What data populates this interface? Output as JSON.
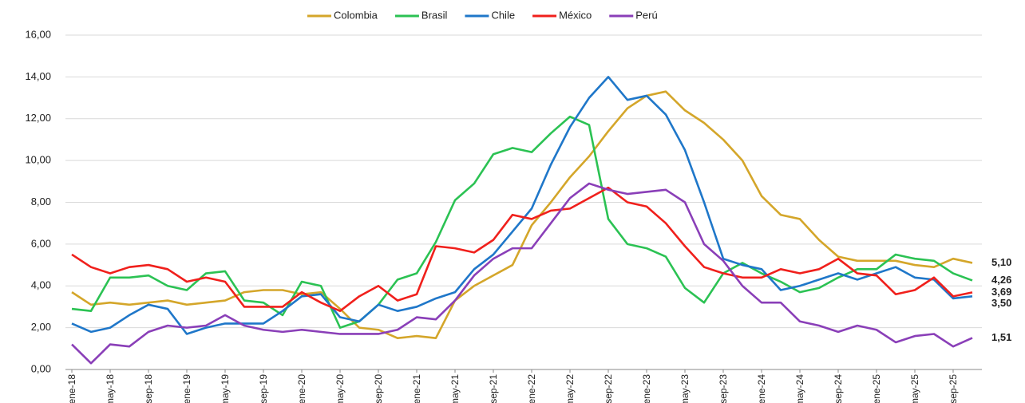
{
  "chart_data": {
    "type": "line",
    "categories": [
      "ene-18",
      null,
      "may-18",
      null,
      "sep-18",
      null,
      "ene-19",
      null,
      "may-19",
      null,
      "sep-19",
      null,
      "ene-20",
      null,
      "may-20",
      null,
      "sep-20",
      null,
      "ene-21",
      null,
      "may-21",
      null,
      "sep-21",
      null,
      "ene-22",
      null,
      "may-22",
      null,
      "sep-22",
      null,
      "ene-23",
      null,
      "may-23",
      null,
      "sep-23",
      null,
      "ene-24",
      null,
      "may-24",
      null,
      "sep-24",
      null,
      "ene-25",
      null,
      "may-25",
      null,
      "sep-25",
      null
    ],
    "series": [
      {
        "name": "Colombia",
        "color": "#d4a62a",
        "values": [
          3.7,
          3.1,
          3.2,
          3.1,
          3.2,
          3.3,
          3.1,
          3.2,
          3.3,
          3.7,
          3.8,
          3.8,
          3.6,
          3.7,
          2.9,
          2.0,
          1.9,
          1.5,
          1.6,
          1.5,
          3.3,
          4.0,
          4.5,
          5.0,
          6.9,
          8.0,
          9.2,
          10.2,
          11.4,
          12.5,
          13.1,
          13.3,
          12.4,
          11.8,
          11.0,
          10.0,
          8.3,
          7.4,
          7.2,
          6.2,
          5.4,
          5.2,
          5.2,
          5.2,
          5.0,
          4.9,
          5.3,
          5.1
        ],
        "value_labels": [
          null,
          null,
          null,
          null,
          null,
          null,
          null,
          null,
          null,
          null,
          null,
          null,
          null,
          null,
          null,
          null,
          null,
          null,
          null,
          null,
          null,
          null,
          null,
          null,
          null,
          null,
          null,
          null,
          null,
          null,
          null,
          null,
          null,
          null,
          null,
          null,
          null,
          null,
          null,
          null,
          null,
          null,
          null,
          null,
          null,
          null,
          null,
          "5,10"
        ]
      },
      {
        "name": "Brasil",
        "color": "#2bc253",
        "values": [
          2.9,
          2.8,
          4.4,
          4.4,
          4.5,
          4.0,
          3.8,
          4.6,
          4.7,
          3.3,
          3.2,
          2.6,
          4.2,
          4.0,
          2.0,
          2.3,
          3.1,
          4.3,
          4.6,
          6.1,
          8.1,
          8.9,
          10.3,
          10.6,
          10.4,
          11.3,
          12.1,
          11.7,
          7.2,
          6.0,
          5.8,
          5.4,
          3.9,
          3.2,
          4.6,
          5.1,
          4.6,
          4.2,
          3.7,
          3.9,
          4.4,
          4.8,
          4.8,
          5.5,
          5.3,
          5.2,
          4.6,
          4.26
        ],
        "value_labels": [
          null,
          null,
          null,
          null,
          null,
          null,
          null,
          null,
          null,
          null,
          null,
          null,
          null,
          null,
          null,
          null,
          null,
          null,
          null,
          null,
          null,
          null,
          null,
          null,
          null,
          null,
          null,
          null,
          null,
          null,
          null,
          null,
          null,
          null,
          null,
          null,
          null,
          null,
          null,
          null,
          null,
          null,
          null,
          null,
          null,
          null,
          null,
          "4,26"
        ]
      },
      {
        "name": "Chile",
        "color": "#1f77c9",
        "values": [
          2.2,
          1.8,
          2.0,
          2.6,
          3.1,
          2.9,
          1.7,
          2.0,
          2.2,
          2.2,
          2.2,
          2.8,
          3.5,
          3.6,
          2.5,
          2.3,
          3.1,
          2.8,
          3.0,
          3.4,
          3.7,
          4.8,
          5.5,
          6.6,
          7.7,
          9.8,
          11.6,
          13.0,
          14.0,
          12.9,
          13.1,
          12.2,
          10.5,
          8.0,
          5.3,
          5.0,
          4.8,
          3.8,
          4.0,
          4.3,
          4.6,
          4.3,
          4.6,
          4.9,
          4.4,
          4.3,
          3.4,
          3.5
        ],
        "value_labels": [
          null,
          null,
          null,
          null,
          null,
          null,
          null,
          null,
          null,
          null,
          null,
          null,
          null,
          null,
          null,
          null,
          null,
          null,
          null,
          null,
          null,
          null,
          null,
          null,
          null,
          null,
          null,
          null,
          null,
          null,
          null,
          null,
          null,
          null,
          null,
          null,
          null,
          null,
          null,
          null,
          null,
          null,
          null,
          null,
          null,
          null,
          null,
          "3,50"
        ]
      },
      {
        "name": "México",
        "color": "#f0201c",
        "values": [
          5.5,
          4.9,
          4.6,
          4.9,
          5.0,
          4.8,
          4.2,
          4.4,
          4.2,
          3.0,
          3.0,
          3.0,
          3.7,
          3.2,
          2.8,
          3.5,
          4.0,
          3.3,
          3.6,
          5.9,
          5.8,
          5.6,
          6.2,
          7.4,
          7.2,
          7.6,
          7.7,
          8.2,
          8.7,
          8.0,
          7.8,
          7.0,
          5.9,
          4.9,
          4.6,
          4.4,
          4.4,
          4.8,
          4.6,
          4.8,
          5.3,
          4.6,
          4.5,
          3.6,
          3.8,
          4.4,
          3.5,
          3.69
        ],
        "value_labels": [
          null,
          null,
          null,
          null,
          null,
          null,
          null,
          null,
          null,
          null,
          null,
          null,
          null,
          null,
          null,
          null,
          null,
          null,
          null,
          null,
          null,
          null,
          null,
          null,
          null,
          null,
          null,
          null,
          null,
          null,
          null,
          null,
          null,
          null,
          null,
          null,
          null,
          null,
          null,
          null,
          null,
          null,
          null,
          null,
          null,
          null,
          null,
          "3,69"
        ]
      },
      {
        "name": "Perú",
        "color": "#8a3fb8",
        "values": [
          1.2,
          0.3,
          1.2,
          1.1,
          1.8,
          2.1,
          2.0,
          2.1,
          2.6,
          2.1,
          1.9,
          1.8,
          1.9,
          1.8,
          1.7,
          1.7,
          1.7,
          1.9,
          2.5,
          2.4,
          3.3,
          4.5,
          5.3,
          5.8,
          5.8,
          7.0,
          8.2,
          8.9,
          8.6,
          8.4,
          8.5,
          8.6,
          8.0,
          6.0,
          5.2,
          4.0,
          3.2,
          3.2,
          2.3,
          2.1,
          1.8,
          2.1,
          1.9,
          1.3,
          1.6,
          1.7,
          1.1,
          1.51
        ],
        "value_labels": [
          null,
          null,
          null,
          null,
          null,
          null,
          null,
          null,
          null,
          null,
          null,
          null,
          null,
          null,
          null,
          null,
          null,
          null,
          null,
          null,
          null,
          null,
          null,
          null,
          null,
          null,
          null,
          null,
          null,
          null,
          null,
          null,
          null,
          null,
          null,
          null,
          null,
          null,
          null,
          null,
          null,
          null,
          null,
          null,
          null,
          null,
          null,
          "1,51"
        ]
      }
    ],
    "ylim": [
      0,
      16
    ],
    "yticks": [
      {
        "value": 0,
        "label": "0,00"
      },
      {
        "value": 2,
        "label": "2,00"
      },
      {
        "value": 4,
        "label": "4,00"
      },
      {
        "value": 6,
        "label": "6,00"
      },
      {
        "value": 8,
        "label": "8,00"
      },
      {
        "value": 10,
        "label": "10,00"
      },
      {
        "value": 12,
        "label": "12,00"
      },
      {
        "value": 14,
        "label": "14,00"
      },
      {
        "value": 16,
        "label": "16,00"
      }
    ],
    "grid": true,
    "legend": "top"
  }
}
